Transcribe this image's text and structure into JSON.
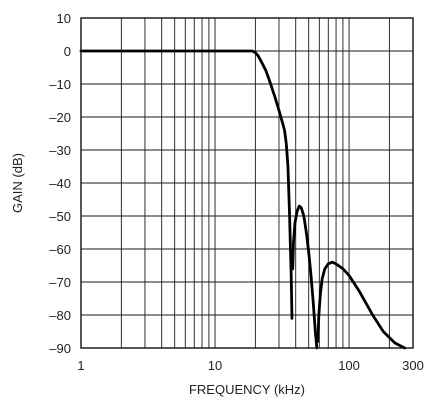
{
  "chart_data": {
    "type": "line",
    "xlabel": "FREQUENCY (kHz)",
    "ylabel": "GAIN (dB)",
    "xscale": "log",
    "xlim": [
      1,
      300
    ],
    "ylim": [
      -90,
      10
    ],
    "grid": true,
    "x_ticks": [
      {
        "value": 1,
        "label": "1"
      },
      {
        "value": 10,
        "label": "10"
      },
      {
        "value": 100,
        "label": "100"
      },
      {
        "value": 300,
        "label": "300"
      }
    ],
    "y_ticks": [
      {
        "value": 10,
        "label": "10"
      },
      {
        "value": 0,
        "label": "0"
      },
      {
        "value": -10,
        "label": "–10"
      },
      {
        "value": -20,
        "label": "–20"
      },
      {
        "value": -30,
        "label": "–30"
      },
      {
        "value": -40,
        "label": "–40"
      },
      {
        "value": -50,
        "label": "–50"
      },
      {
        "value": -60,
        "label": "–60"
      },
      {
        "value": -70,
        "label": "–70"
      },
      {
        "value": -80,
        "label": "–80"
      },
      {
        "value": -90,
        "label": "–90"
      }
    ],
    "series": [
      {
        "segments": [
          [
            [
              1,
              0
            ],
            [
              5,
              0
            ],
            [
              10,
              0
            ],
            [
              15,
              0
            ],
            [
              19,
              0
            ],
            [
              20,
              -0.5
            ],
            [
              21,
              -1.5
            ],
            [
              22,
              -3
            ],
            [
              24,
              -6
            ],
            [
              26,
              -10
            ],
            [
              28,
              -14
            ],
            [
              30,
              -18
            ],
            [
              32,
              -22
            ],
            [
              33,
              -24
            ],
            [
              34,
              -28
            ],
            [
              35,
              -35
            ],
            [
              36,
              -50
            ],
            [
              37,
              -68
            ],
            [
              37.5,
              -81
            ]
          ],
          [
            [
              38,
              -66
            ],
            [
              38.5,
              -58
            ],
            [
              39.5,
              -52
            ],
            [
              41,
              -48.5
            ],
            [
              42.5,
              -47
            ],
            [
              44,
              -47.5
            ],
            [
              46,
              -50
            ],
            [
              48,
              -55
            ],
            [
              50,
              -61
            ],
            [
              52,
              -68
            ],
            [
              54,
              -76
            ],
            [
              56,
              -85
            ],
            [
              57.5,
              -90
            ]
          ],
          [
            [
              58.5,
              -88
            ],
            [
              59.5,
              -80
            ],
            [
              61,
              -74
            ],
            [
              63,
              -69
            ],
            [
              66,
              -66
            ],
            [
              70,
              -64.5
            ],
            [
              75,
              -64
            ],
            [
              80,
              -64.5
            ],
            [
              90,
              -66
            ],
            [
              100,
              -68
            ],
            [
              120,
              -73
            ],
            [
              150,
              -80
            ],
            [
              180,
              -85
            ],
            [
              220,
              -88.5
            ],
            [
              260,
              -90
            ]
          ]
        ]
      }
    ]
  }
}
